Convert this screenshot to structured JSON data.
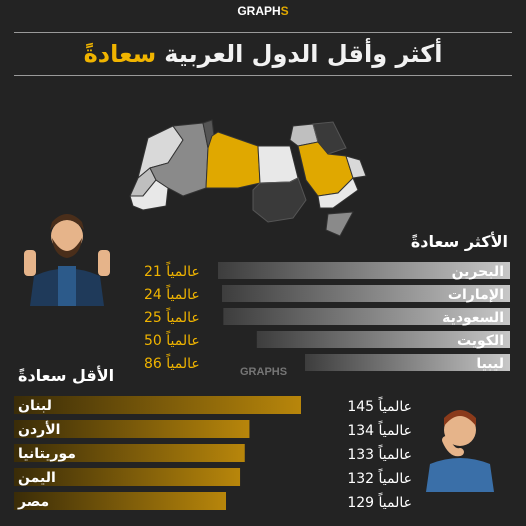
{
  "logo": {
    "brand": "GRAPH",
    "mark": "S"
  },
  "title": {
    "main": "أكثر وأقل الدول العربية",
    "highlight": "سعادةً"
  },
  "chart_data": [
    {
      "type": "bar",
      "orientation": "horizontal",
      "title": "الأكثر سعادةً",
      "categories": [
        "البحرين",
        "الإمارات",
        "السعودية",
        "الكويت",
        "ليبيا"
      ],
      "values": [
        21,
        24,
        25,
        50,
        86
      ],
      "value_suffix": "عالمياً",
      "bar_color": "#c7c7c7",
      "xlim": [
        0,
        145
      ]
    },
    {
      "type": "bar",
      "orientation": "horizontal",
      "title": "الأقل سعادةً",
      "categories": [
        "لبنان",
        "الأردن",
        "موريتانيا",
        "اليمن",
        "مصر"
      ],
      "values": [
        145,
        134,
        133,
        132,
        129
      ],
      "value_suffix": "عالمياً",
      "bar_color": "#b8860b",
      "xlim": [
        0,
        145
      ]
    }
  ],
  "colors": {
    "accent": "#f0b400",
    "background": "#232323"
  },
  "illustrations": [
    "happy-man-thumbs-up-icon",
    "sad-man-thinking-icon",
    "arab-world-map"
  ]
}
